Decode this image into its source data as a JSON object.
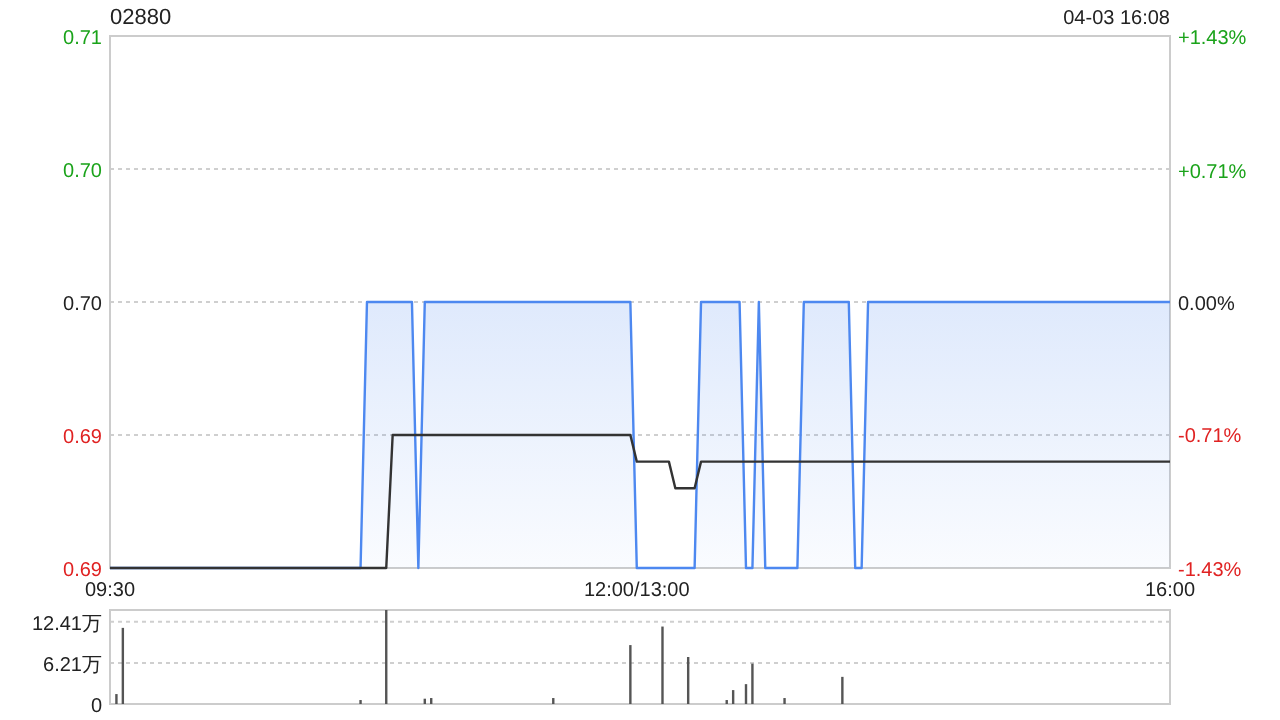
{
  "chart_data": [
    {
      "type": "area",
      "title": "02880",
      "subtitle": "04-03 16:08",
      "categories": [
        "09:30",
        null,
        null,
        null,
        null,
        null,
        null,
        null,
        null,
        null,
        null,
        null,
        null,
        null,
        null,
        null,
        null,
        null,
        null,
        null,
        null,
        null,
        null,
        null,
        null,
        null,
        null,
        null,
        null,
        null,
        null,
        null,
        null,
        null,
        null,
        null,
        null,
        null,
        null,
        null,
        null,
        null,
        null,
        null,
        null,
        null,
        null,
        null,
        null,
        null,
        null,
        null,
        null,
        null,
        null,
        null,
        null,
        null,
        null,
        null,
        null,
        null,
        null,
        null,
        null,
        null,
        null,
        null,
        null,
        null,
        null,
        null,
        null,
        null,
        null,
        null,
        null,
        null,
        null,
        null,
        null,
        null,
        "12:00/13:00",
        null,
        null,
        null,
        null,
        null,
        null,
        null,
        null,
        null,
        null,
        null,
        null,
        null,
        null,
        null,
        null,
        null,
        null,
        null,
        null,
        null,
        null,
        null,
        null,
        null,
        null,
        null,
        null,
        null,
        null,
        null,
        null,
        null,
        null,
        null,
        null,
        null,
        null,
        null,
        null,
        null,
        null,
        null,
        null,
        null,
        null,
        null,
        null,
        null,
        null,
        null,
        null,
        null,
        null,
        null,
        null,
        null,
        null,
        null,
        null,
        null,
        null,
        null,
        null,
        null,
        null,
        null,
        null,
        null,
        null,
        null,
        null,
        null,
        null,
        null,
        null,
        null,
        null,
        null,
        null,
        null,
        null,
        "16:00"
      ],
      "ylim": [
        0.69,
        0.71
      ],
      "yticks": [
        0.69,
        {
          "value": 0.695,
          "label": "0.69"
        },
        {
          "value": 0.7,
          "label": "0.70"
        },
        {
          "value": 0.705,
          "label": "0.70"
        },
        0.71
      ],
      "y2lim": [
        -1.43,
        1.43
      ],
      "y2ticks": [
        {
          "value": -1.43,
          "label": "-1.43%"
        },
        {
          "value": -0.71,
          "label": "-0.71%"
        },
        {
          "value": 0,
          "label": "0.00%"
        },
        {
          "value": 0.71,
          "label": "+0.71%"
        },
        {
          "value": 1.43,
          "label": "+1.43%"
        }
      ],
      "grid": "y",
      "line_style": "solid",
      "series": [
        {
          "color": "#4d88f0",
          "values": [
            0.69,
            0.69,
            0.69,
            0.69,
            0.69,
            0.69,
            0.69,
            0.69,
            0.69,
            0.69,
            0.69,
            0.69,
            0.69,
            0.69,
            0.69,
            0.69,
            0.69,
            0.69,
            0.69,
            0.69,
            0.69,
            0.69,
            0.69,
            0.69,
            0.69,
            0.69,
            0.69,
            0.69,
            0.69,
            0.69,
            0.69,
            0.69,
            0.69,
            0.69,
            0.69,
            0.69,
            0.69,
            0.69,
            0.69,
            0.69,
            0.7,
            0.7,
            0.7,
            0.7,
            0.7,
            0.7,
            0.7,
            0.7,
            0.69,
            0.7,
            0.7,
            0.7,
            0.7,
            0.7,
            0.7,
            0.7,
            0.7,
            0.7,
            0.7,
            0.7,
            0.7,
            0.7,
            0.7,
            0.7,
            0.7,
            0.7,
            0.7,
            0.7,
            0.7,
            0.7,
            0.7,
            0.7,
            0.7,
            0.7,
            0.7,
            0.7,
            0.7,
            0.7,
            0.7,
            0.7,
            0.7,
            0.7,
            0.69,
            0.69,
            0.69,
            0.69,
            0.69,
            0.69,
            0.69,
            0.69,
            0.69,
            0.69,
            0.7,
            0.7,
            0.7,
            0.7,
            0.7,
            0.7,
            0.7,
            0.69,
            0.69,
            0.7,
            0.69,
            0.69,
            0.69,
            0.69,
            0.69,
            0.69,
            0.7,
            0.7,
            0.7,
            0.7,
            0.7,
            0.7,
            0.7,
            0.7,
            0.69,
            0.69,
            0.7,
            0.7,
            0.7,
            0.7,
            0.7,
            0.7,
            0.7,
            0.7,
            0.7,
            0.7,
            0.7,
            0.7,
            0.7,
            0.7,
            0.7,
            0.7,
            0.7,
            0.7,
            0.7,
            0.7,
            0.7,
            0.7,
            0.7,
            0.7,
            0.7,
            0.7,
            0.7,
            0.7,
            0.7,
            0.7,
            0.7,
            0.7,
            0.7,
            0.7,
            0.7,
            0.7,
            0.7,
            0.7,
            0.7,
            0.7,
            0.7,
            0.7,
            0.7,
            0.7,
            0.7,
            0.7,
            0.7,
            0.7
          ]
        },
        {
          "type": "line",
          "color": "#333333",
          "values": [
            0.69,
            0.69,
            0.69,
            0.69,
            0.69,
            0.69,
            0.69,
            0.69,
            0.69,
            0.69,
            0.69,
            0.69,
            0.69,
            0.69,
            0.69,
            0.69,
            0.69,
            0.69,
            0.69,
            0.69,
            0.69,
            0.69,
            0.69,
            0.69,
            0.69,
            0.69,
            0.69,
            0.69,
            0.69,
            0.69,
            0.69,
            0.69,
            0.69,
            0.69,
            0.69,
            0.69,
            0.69,
            0.69,
            0.69,
            0.69,
            0.69,
            0.69,
            0.69,
            0.69,
            0.695,
            0.695,
            0.695,
            0.695,
            0.695,
            0.695,
            0.695,
            0.695,
            0.695,
            0.695,
            0.695,
            0.695,
            0.695,
            0.695,
            0.695,
            0.695,
            0.695,
            0.695,
            0.695,
            0.695,
            0.695,
            0.695,
            0.695,
            0.695,
            0.695,
            0.695,
            0.695,
            0.695,
            0.695,
            0.695,
            0.695,
            0.695,
            0.695,
            0.695,
            0.695,
            0.695,
            0.695,
            0.695,
            0.694,
            0.694,
            0.694,
            0.694,
            0.694,
            0.694,
            0.693,
            0.693,
            0.693,
            0.693,
            0.694,
            0.694,
            0.694,
            0.694,
            0.694,
            0.694,
            0.694,
            0.694,
            0.694,
            0.694,
            0.694,
            0.694,
            0.694,
            0.694,
            0.694,
            0.694,
            0.694,
            0.694,
            0.694,
            0.694,
            0.694,
            0.694,
            0.694,
            0.694,
            0.694,
            0.694,
            0.694,
            0.694,
            0.694,
            0.694,
            0.694,
            0.694,
            0.694,
            0.694,
            0.694,
            0.694,
            0.694,
            0.694,
            0.694,
            0.694,
            0.694,
            0.694,
            0.694,
            0.694,
            0.694,
            0.694,
            0.694,
            0.694,
            0.694,
            0.694,
            0.694,
            0.694,
            0.694,
            0.694,
            0.694,
            0.694,
            0.694,
            0.694,
            0.694,
            0.694,
            0.694,
            0.694,
            0.694,
            0.694,
            0.694,
            0.694,
            0.694,
            0.694,
            0.694,
            0.694,
            0.694,
            0.694,
            0.694,
            0.694
          ]
        }
      ]
    },
    {
      "type": "bar",
      "color": "#555555",
      "categories": [
        null,
        null,
        null,
        null,
        null,
        null,
        null,
        null,
        null,
        null,
        null,
        null,
        null,
        null,
        null,
        null,
        null,
        null,
        null,
        null,
        null,
        null,
        null,
        null,
        null,
        null,
        null,
        null,
        null,
        null,
        null,
        null,
        null,
        null,
        null,
        null,
        null,
        null,
        null,
        null,
        null,
        null,
        null,
        null,
        null,
        null,
        null,
        null,
        null,
        null,
        null,
        null,
        null,
        null,
        null,
        null,
        null,
        null,
        null,
        null,
        null,
        null,
        null,
        null,
        null,
        null,
        null,
        null,
        null,
        null,
        null,
        null,
        null,
        null,
        null,
        null,
        null,
        null,
        null,
        null,
        null,
        null,
        null,
        null,
        null,
        null,
        null,
        null,
        null,
        null,
        null,
        null,
        null,
        null,
        null,
        null,
        null,
        null,
        null,
        null,
        null,
        null,
        null,
        null,
        null,
        null,
        null,
        null,
        null,
        null,
        null,
        null,
        null,
        null,
        null,
        null,
        null,
        null,
        null,
        null,
        null,
        null,
        null,
        null,
        null,
        null,
        null,
        null,
        null,
        null,
        null,
        null,
        null,
        null,
        null,
        null,
        null,
        null,
        null,
        null,
        null,
        null,
        null,
        null,
        null,
        null,
        null,
        null,
        null,
        null,
        null,
        null,
        null,
        null,
        null,
        null,
        null,
        null,
        null,
        null,
        null,
        null,
        null,
        null,
        null,
        null
      ],
      "ylim": [
        0,
        14.2
      ],
      "yticks": [
        0,
        {
          "value": 6.21,
          "label": "6.21万"
        },
        {
          "value": 12.41,
          "label": "12.41万"
        }
      ],
      "tick_labels": "y",
      "grid": "y",
      "values": [
        null,
        1.5,
        11.5,
        null,
        null,
        null,
        null,
        null,
        null,
        null,
        null,
        null,
        null,
        null,
        null,
        null,
        null,
        null,
        null,
        null,
        null,
        null,
        null,
        null,
        null,
        null,
        null,
        null,
        null,
        null,
        null,
        null,
        null,
        null,
        null,
        null,
        null,
        null,
        null,
        0.6,
        null,
        null,
        null,
        14.2,
        null,
        null,
        null,
        null,
        null,
        0.8,
        0.9,
        null,
        null,
        null,
        null,
        null,
        null,
        null,
        null,
        null,
        null,
        null,
        null,
        null,
        null,
        null,
        null,
        null,
        null,
        0.9,
        null,
        null,
        null,
        null,
        null,
        null,
        null,
        null,
        null,
        null,
        null,
        8.9,
        null,
        null,
        null,
        null,
        11.7,
        null,
        null,
        null,
        7.1,
        null,
        null,
        null,
        null,
        null,
        0.6,
        2.1,
        null,
        3,
        6.1,
        null,
        null,
        null,
        null,
        0.9,
        null,
        null,
        null,
        null,
        null,
        null,
        null,
        null,
        4.1,
        null,
        null,
        null,
        null,
        null,
        null,
        null,
        null,
        null,
        null,
        null,
        null,
        null,
        null,
        null,
        null,
        null,
        null,
        null,
        null,
        null,
        null,
        null,
        null,
        null,
        null,
        null,
        null,
        null,
        null,
        null,
        null,
        null,
        null,
        null,
        null,
        null,
        null,
        null,
        null,
        null,
        null,
        null,
        null,
        null,
        null,
        null,
        null,
        null,
        null,
        null
      ]
    }
  ]
}
